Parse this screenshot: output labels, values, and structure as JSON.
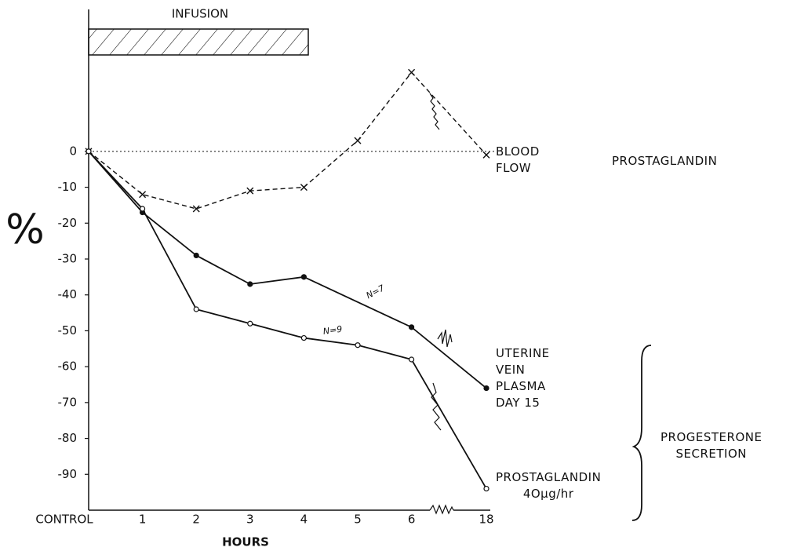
{
  "chart_data": {
    "type": "line",
    "x_label": "HOURS",
    "y_label": "%",
    "categories": [
      "CONTROL",
      "1",
      "2",
      "3",
      "4",
      "5",
      "6",
      "18"
    ],
    "ylim": [
      -100,
      40
    ],
    "yticks": [
      0,
      -10,
      -20,
      -30,
      -40,
      -50,
      -60,
      -70,
      -80,
      -90
    ],
    "series": [
      {
        "name": "BLOOD\nFLOW",
        "color": "#111",
        "style": "dashed",
        "marker": "x",
        "values": [
          0,
          -12,
          -16,
          -11,
          -10,
          3,
          22,
          -1
        ]
      },
      {
        "name": "N=7",
        "color": "#111",
        "style": "solid",
        "marker": "filled-circle",
        "x": [
          "CONTROL",
          "1",
          "2",
          "3",
          "4",
          "6",
          "18"
        ],
        "values": [
          0,
          -17,
          -29,
          -37,
          -35,
          -49,
          -66
        ]
      },
      {
        "name": "N=9",
        "color": "#111",
        "style": "solid",
        "marker": "open-circle",
        "values": [
          0,
          -16,
          -44,
          -48,
          -52,
          -54,
          -58,
          -94
        ]
      }
    ],
    "annotations": [
      "INFUSION",
      "PROSTAGLANDIN",
      "UTERINE\nVEIN\nPLASMA\nDAY 15",
      "PROSTAGLANDIN\n4Oµg/hr",
      "PROGESTERONE\nSECRETION"
    ]
  }
}
